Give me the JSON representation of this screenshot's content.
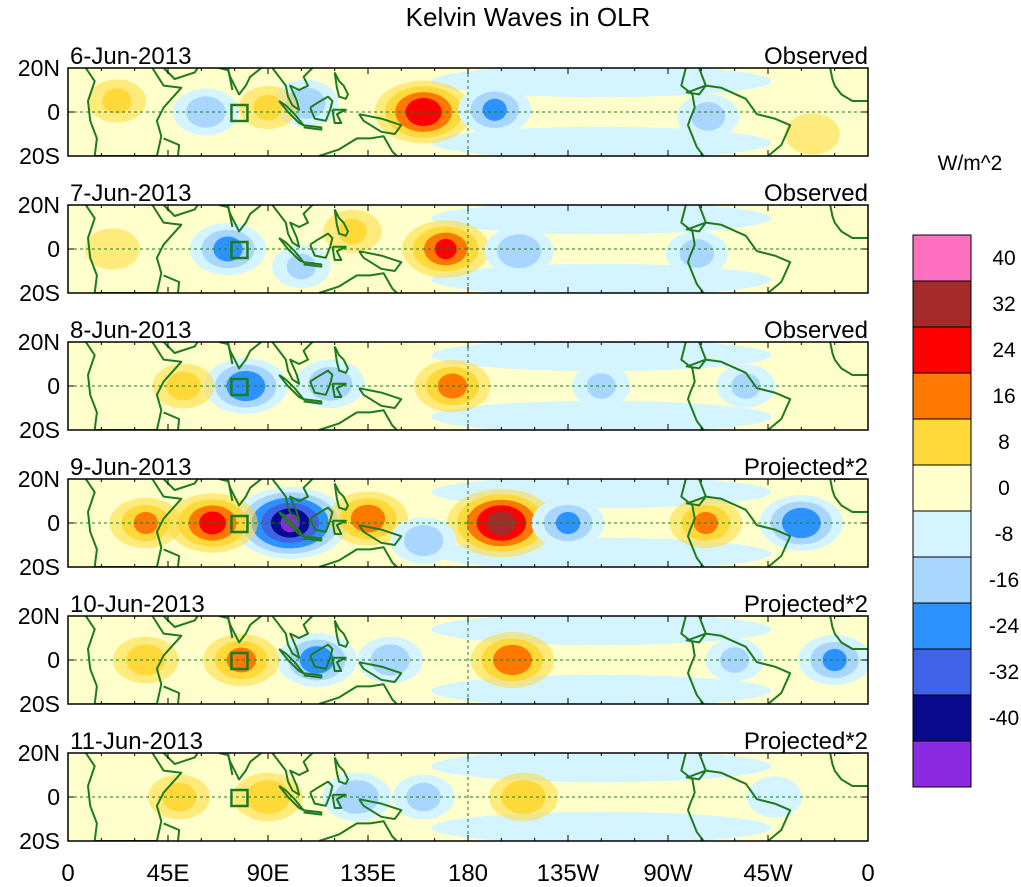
{
  "chart_data": {
    "type": "heatmap",
    "title": "Kelvin Waves in OLR",
    "colorbar": {
      "units": "W/m^2",
      "levels": [
        "40",
        "32",
        "24",
        "16",
        "8",
        "0",
        "-8",
        "-16",
        "-24",
        "-32",
        "-40"
      ],
      "colors": [
        "#ff6fbf",
        "#a52a2a",
        "#ff0000",
        "#ff7800",
        "#ffd83a",
        "#ffffcc",
        "#d4f4ff",
        "#a8d6ff",
        "#2b92ff",
        "#3f63e8",
        "#0a0a8c",
        "#8a2be2"
      ]
    },
    "x_ticks": [
      "0",
      "45E",
      "90E",
      "135E",
      "180",
      "135W",
      "90W",
      "45W",
      "0"
    ],
    "x_values": [
      0,
      45,
      90,
      135,
      180,
      225,
      270,
      315,
      360
    ],
    "y_ticks": [
      "20N",
      "0",
      "20S"
    ],
    "y_values": [
      20,
      0,
      -20
    ],
    "xlim": [
      0,
      360
    ],
    "ylim": [
      -20,
      20
    ],
    "panels": [
      {
        "date": "6-Jun-2013",
        "status": "Observed",
        "features": [
          {
            "lon": 160,
            "lat": 0,
            "value": 30
          },
          {
            "lon": 192,
            "lat": 1,
            "value": -16
          },
          {
            "lon": 62,
            "lat": 0,
            "value": -12
          },
          {
            "lon": 107,
            "lat": 4,
            "value": -12
          },
          {
            "lon": 22,
            "lat": 5,
            "value": 8
          },
          {
            "lon": 90,
            "lat": 2,
            "value": 8
          },
          {
            "lon": 288,
            "lat": -2,
            "value": -10
          },
          {
            "lon": 335,
            "lat": -10,
            "value": 6
          }
        ]
      },
      {
        "date": "7-Jun-2013",
        "status": "Observed",
        "features": [
          {
            "lon": 170,
            "lat": 0,
            "value": 24
          },
          {
            "lon": 72,
            "lat": 0,
            "value": -18
          },
          {
            "lon": 203,
            "lat": -1,
            "value": -14
          },
          {
            "lon": 128,
            "lat": 8,
            "value": 8
          },
          {
            "lon": 283,
            "lat": -2,
            "value": -10
          },
          {
            "lon": 20,
            "lat": 0,
            "value": 6
          },
          {
            "lon": 105,
            "lat": -8,
            "value": -8
          }
        ]
      },
      {
        "date": "8-Jun-2013",
        "status": "Observed",
        "features": [
          {
            "lon": 173,
            "lat": 0,
            "value": 18
          },
          {
            "lon": 80,
            "lat": 0,
            "value": -22
          },
          {
            "lon": 118,
            "lat": 1,
            "value": -14
          },
          {
            "lon": 52,
            "lat": 0,
            "value": 10
          },
          {
            "lon": 240,
            "lat": 0,
            "value": -8
          },
          {
            "lon": 305,
            "lat": 0,
            "value": -8
          }
        ]
      },
      {
        "date": "9-Jun-2013",
        "status": "Projected*2",
        "features": [
          {
            "lon": 195,
            "lat": 0,
            "value": 36
          },
          {
            "lon": 100,
            "lat": 0,
            "value": -40
          },
          {
            "lon": 65,
            "lat": 0,
            "value": 26
          },
          {
            "lon": 35,
            "lat": 0,
            "value": 16
          },
          {
            "lon": 135,
            "lat": 2,
            "value": 20
          },
          {
            "lon": 225,
            "lat": 0,
            "value": -16
          },
          {
            "lon": 330,
            "lat": 0,
            "value": -22
          },
          {
            "lon": 287,
            "lat": 0,
            "value": 16
          },
          {
            "lon": 160,
            "lat": -8,
            "value": -12
          }
        ]
      },
      {
        "date": "10-Jun-2013",
        "status": "Projected*2",
        "features": [
          {
            "lon": 200,
            "lat": 0,
            "value": 22
          },
          {
            "lon": 112,
            "lat": 0,
            "value": -20
          },
          {
            "lon": 78,
            "lat": 0,
            "value": 18
          },
          {
            "lon": 35,
            "lat": 0,
            "value": 12
          },
          {
            "lon": 145,
            "lat": 0,
            "value": -12
          },
          {
            "lon": 300,
            "lat": 0,
            "value": -8
          },
          {
            "lon": 345,
            "lat": 0,
            "value": -16
          }
        ]
      },
      {
        "date": "11-Jun-2013",
        "status": "Projected*2",
        "features": [
          {
            "lon": 205,
            "lat": 0,
            "value": 14
          },
          {
            "lon": 130,
            "lat": 0,
            "value": -14
          },
          {
            "lon": 90,
            "lat": 0,
            "value": 14
          },
          {
            "lon": 50,
            "lat": 0,
            "value": 10
          },
          {
            "lon": 160,
            "lat": 0,
            "value": -10
          },
          {
            "lon": 318,
            "lat": 0,
            "value": -6
          }
        ]
      }
    ]
  }
}
